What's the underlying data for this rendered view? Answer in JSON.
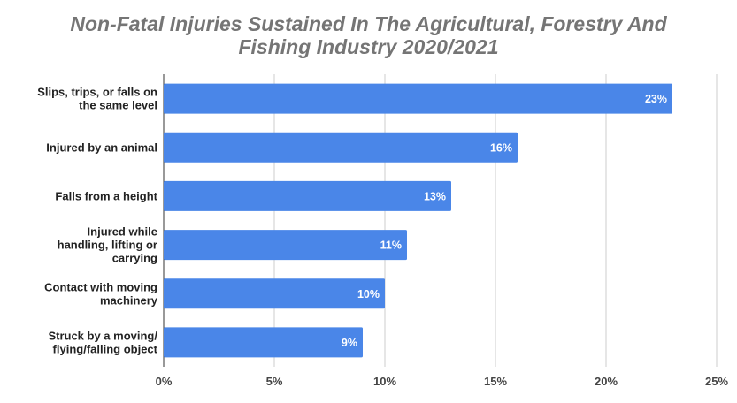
{
  "chart_data": {
    "type": "bar",
    "orientation": "horizontal",
    "title_lines": [
      "Non-Fatal Injuries Sustained In The Agricultural, Forestry And",
      "Fishing Industry 2020/2021"
    ],
    "categories": [
      [
        "Slips, trips, or falls on",
        "the same level"
      ],
      [
        "Injured by an animal"
      ],
      [
        "Falls from a height"
      ],
      [
        "Injured while",
        "handling, lifting or",
        "carrying"
      ],
      [
        "Contact with moving",
        "machinery"
      ],
      [
        "Struck by a moving/",
        "flying/falling object"
      ]
    ],
    "values": [
      23,
      16,
      13,
      11,
      10,
      9
    ],
    "data_labels": [
      "23%",
      "16%",
      "13%",
      "11%",
      "10%",
      "9%"
    ],
    "xlim": [
      0,
      25
    ],
    "x_ticks": [
      0,
      5,
      10,
      15,
      20,
      25
    ],
    "x_tick_labels": [
      "0%",
      "5%",
      "10%",
      "15%",
      "20%",
      "25%"
    ],
    "bar_color": "#4a86e8",
    "grid": true,
    "legend": "none"
  }
}
